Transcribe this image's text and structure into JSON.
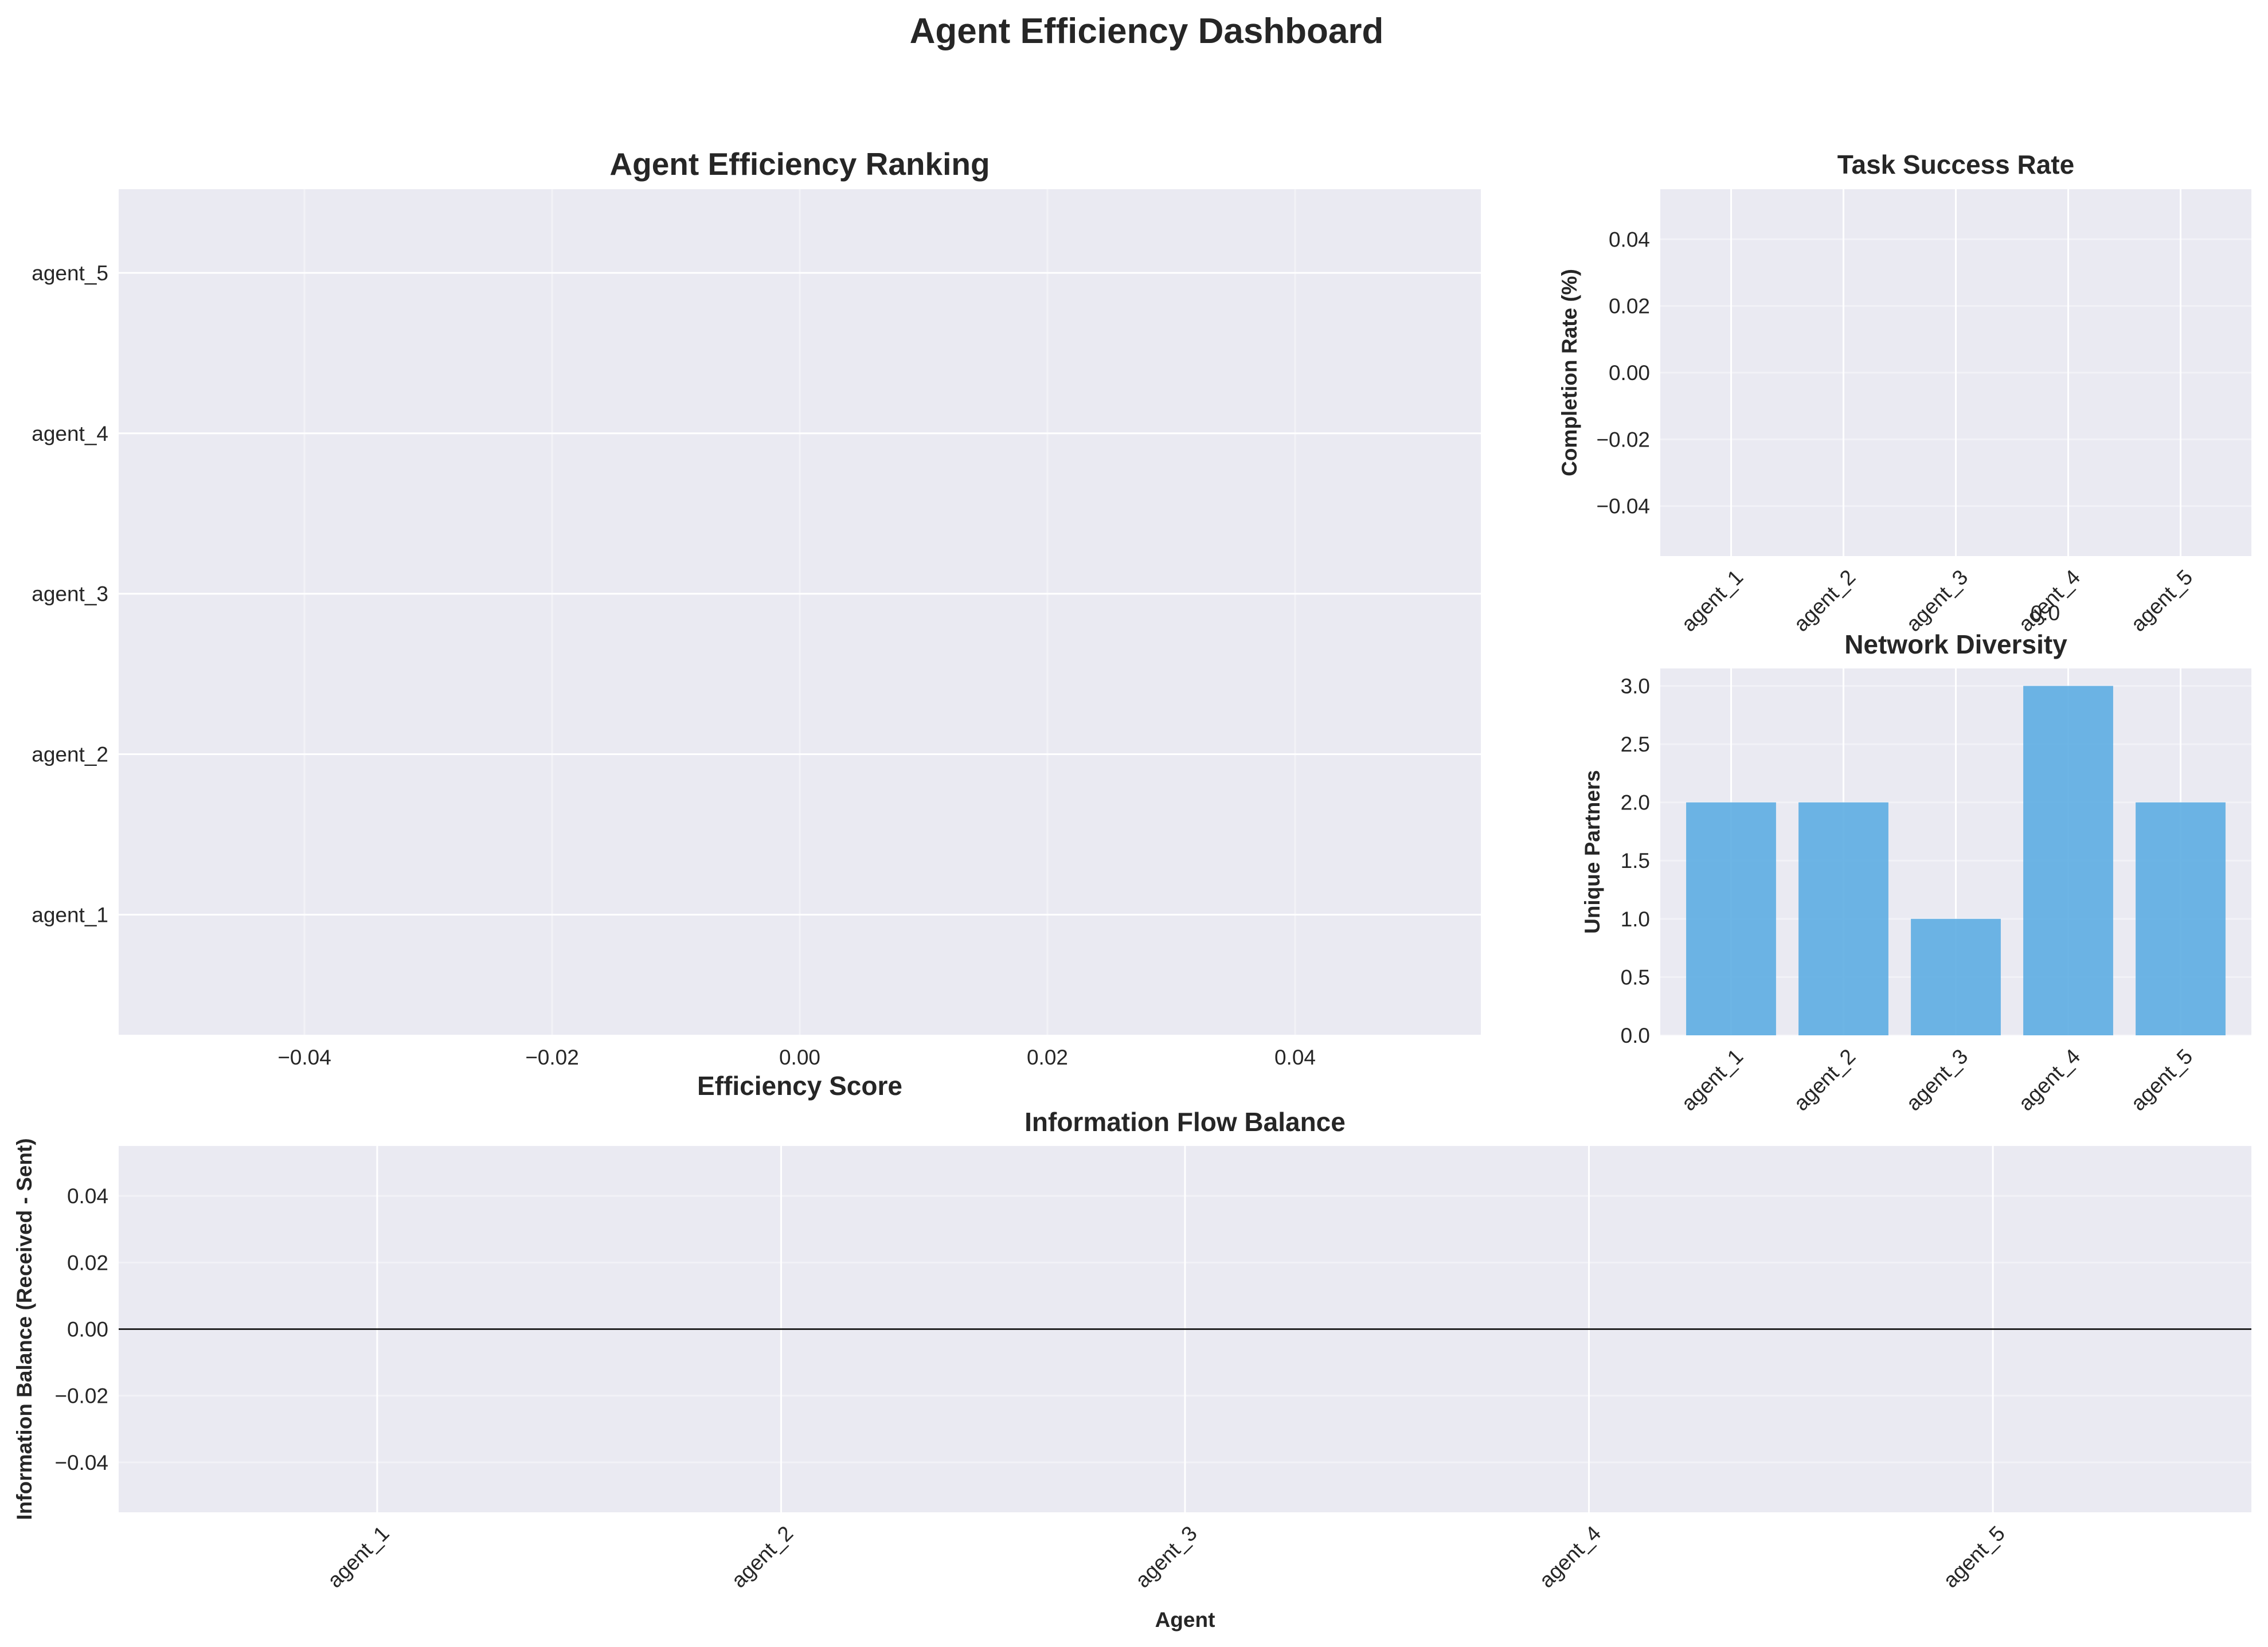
{
  "suptitle": "Agent Efficiency Dashboard",
  "colors": {
    "axes_bg": "#eaeaf2",
    "grid": "#ffffff",
    "bar": "#5dade2",
    "text": "#262626"
  },
  "chart_data": [
    {
      "id": "ranking",
      "type": "bar",
      "orientation": "horizontal",
      "title": "Agent Efficiency Ranking",
      "xlabel": "Efficiency Score",
      "ylabel": "",
      "categories": [
        "agent_1",
        "agent_2",
        "agent_3",
        "agent_4",
        "agent_5"
      ],
      "values": [
        0,
        0,
        0,
        0,
        0
      ],
      "xlim": [
        -0.055,
        0.055
      ],
      "xticks": [
        -0.04,
        -0.02,
        0.0,
        0.02,
        0.04
      ],
      "xtick_labels": [
        "−0.04",
        "−0.02",
        "0.00",
        "0.02",
        "0.04"
      ],
      "grid": true
    },
    {
      "id": "success",
      "type": "bar",
      "title": "Task Success Rate",
      "xlabel": "",
      "ylabel": "Completion Rate (%)",
      "categories": [
        "agent_1",
        "agent_2",
        "agent_3",
        "agent_4",
        "agent_5"
      ],
      "values": [
        0,
        0,
        0,
        0,
        0
      ],
      "ylim": [
        -0.055,
        0.055
      ],
      "yticks": [
        -0.04,
        -0.02,
        0.0,
        0.02,
        0.04
      ],
      "ytick_labels": [
        "−0.04",
        "−0.02",
        "0.00",
        "0.02",
        "0.04"
      ],
      "annotation": "0.0",
      "grid": true
    },
    {
      "id": "diversity",
      "type": "bar",
      "title": "Network Diversity",
      "xlabel": "",
      "ylabel": "Unique Partners",
      "categories": [
        "agent_1",
        "agent_2",
        "agent_3",
        "agent_4",
        "agent_5"
      ],
      "values": [
        2,
        2,
        1,
        3,
        2
      ],
      "ylim": [
        0,
        3.15
      ],
      "yticks": [
        0,
        0.5,
        1.0,
        1.5,
        2.0,
        2.5,
        3.0
      ],
      "ytick_labels": [
        "0.0",
        "0.5",
        "1.0",
        "1.5",
        "2.0",
        "2.5",
        "3.0"
      ],
      "grid": true
    },
    {
      "id": "balance",
      "type": "bar",
      "title": "Information Flow Balance",
      "xlabel": "Agent",
      "ylabel": "Information Balance (Received - Sent)",
      "categories": [
        "agent_1",
        "agent_2",
        "agent_3",
        "agent_4",
        "agent_5"
      ],
      "values": [
        0,
        0,
        0,
        0,
        0
      ],
      "ylim": [
        -0.055,
        0.055
      ],
      "yticks": [
        -0.04,
        -0.02,
        0.0,
        0.02,
        0.04
      ],
      "ytick_labels": [
        "−0.04",
        "−0.02",
        "0.00",
        "0.02",
        "0.04"
      ],
      "grid": true
    }
  ]
}
